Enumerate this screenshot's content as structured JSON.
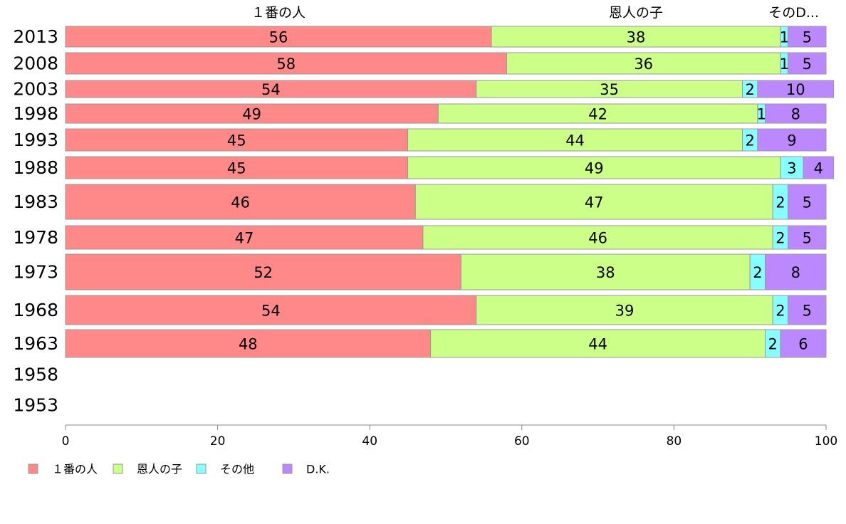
{
  "chart_data": {
    "type": "bar",
    "orientation": "horizontal",
    "stacked": true,
    "title": "",
    "xlabel": "",
    "ylabel": "",
    "xlim": [
      0,
      100
    ],
    "x_ticks": [
      "0",
      "20",
      "40",
      "60",
      "80",
      "100"
    ],
    "categories": [
      "2013",
      "2008",
      "2003",
      "1998",
      "1993",
      "1988",
      "1983",
      "1978",
      "1973",
      "1968",
      "1963",
      "1958",
      "1953"
    ],
    "series": [
      {
        "name": "１番の人",
        "color": "#ff8888",
        "values": [
          56,
          58,
          54,
          49,
          45,
          45,
          46,
          47,
          52,
          54,
          48,
          null,
          null
        ]
      },
      {
        "name": "恩人の子",
        "color": "#ccff88",
        "values": [
          38,
          36,
          35,
          42,
          44,
          49,
          47,
          46,
          38,
          39,
          44,
          null,
          null
        ]
      },
      {
        "name": "その他",
        "color": "#88ffff",
        "values": [
          1,
          1,
          2,
          1,
          2,
          3,
          2,
          2,
          2,
          2,
          2,
          null,
          null
        ]
      },
      {
        "name": "D.K.",
        "color": "#bb88ff",
        "values": [
          5,
          5,
          10,
          8,
          9,
          4,
          5,
          5,
          8,
          5,
          6,
          null,
          null
        ]
      }
    ],
    "top_series_labels": [
      "１番の人",
      "恩人の子",
      "その他",
      ""
    ],
    "legend_position": "bottom-left",
    "grid": false
  }
}
